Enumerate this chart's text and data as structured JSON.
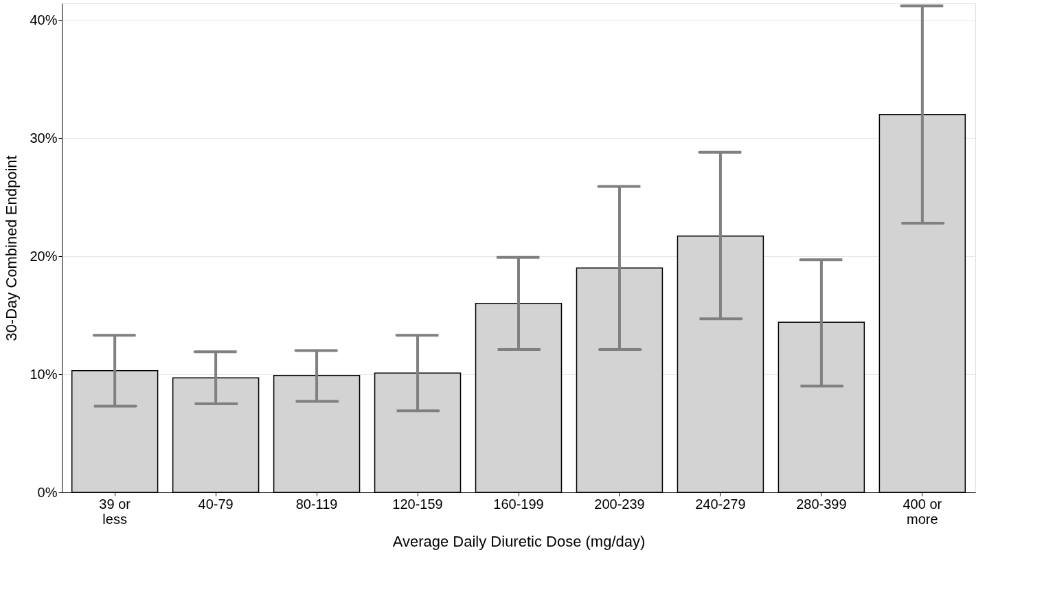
{
  "chart_data": {
    "type": "bar",
    "xlabel": "Average Daily Diuretic Dose (mg/day)",
    "ylabel": "30-Day Combined Endpoint",
    "categories": [
      "39 or\nless",
      "40-79",
      "80-119",
      "120-159",
      "160-199",
      "200-239",
      "240-279",
      "280-399",
      "400 or\nmore"
    ],
    "values": [
      10.3,
      9.7,
      9.9,
      10.1,
      16.0,
      19.0,
      21.7,
      14.4,
      32.0
    ],
    "errors": [
      [
        7.3,
        13.3
      ],
      [
        7.5,
        11.9
      ],
      [
        7.7,
        12.0
      ],
      [
        6.9,
        13.3
      ],
      [
        12.1,
        19.9
      ],
      [
        12.1,
        25.9
      ],
      [
        14.7,
        28.8
      ],
      [
        9.0,
        19.7
      ],
      [
        22.8,
        41.2
      ]
    ],
    "color": "#d3d3d3",
    "ylim": [
      0,
      41.4
    ],
    "yticks": [
      {
        "value": 0,
        "label": "0%"
      },
      {
        "value": 10,
        "label": "10%"
      },
      {
        "value": 20,
        "label": "20%"
      },
      {
        "value": 30,
        "label": "30%"
      },
      {
        "value": 40,
        "label": "40%"
      }
    ],
    "grid": "y"
  }
}
